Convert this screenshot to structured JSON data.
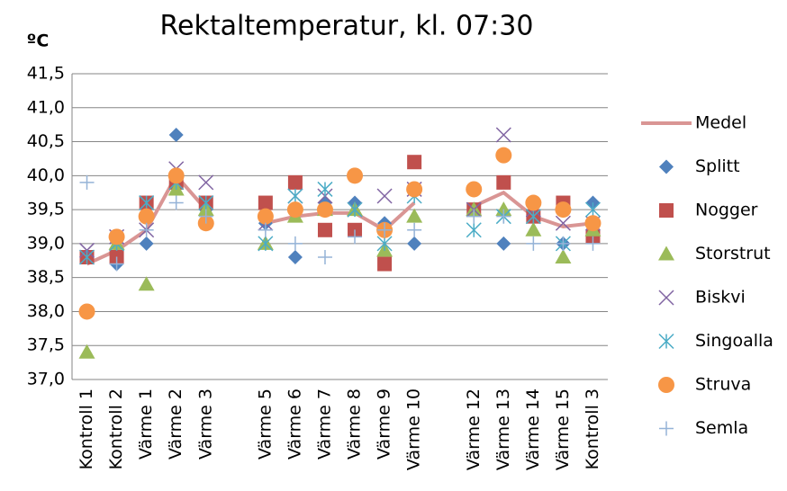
{
  "chart_data": {
    "type": "scatter",
    "title": "Rektaltemperatur, kl. 07:30",
    "y_label": "ºC",
    "categories": [
      "Kontroll 1",
      "Kontroll 2",
      "Värme 1",
      "Värme 2",
      "Värme 3",
      null,
      "Värme 5",
      "Värme 6",
      "Värme 7",
      "Värme 8",
      "Värme 9",
      "Värme 10",
      null,
      "Värme 12",
      "Värme 13",
      "Värme 14",
      "Värme 15",
      "Kontroll 3"
    ],
    "ylim": [
      37.0,
      41.5
    ],
    "yticks": [
      {
        "value": 37.0,
        "label": "37,0"
      },
      {
        "value": 37.5,
        "label": "37,5"
      },
      {
        "value": 38.0,
        "label": "38,0"
      },
      {
        "value": 38.5,
        "label": "38,5"
      },
      {
        "value": 39.0,
        "label": "39,0"
      },
      {
        "value": 39.5,
        "label": "39,5"
      },
      {
        "value": 40.0,
        "label": "40,0"
      },
      {
        "value": 40.5,
        "label": "40,5"
      },
      {
        "value": 41.0,
        "label": "41,0"
      },
      {
        "value": 41.5,
        "label": "41,5"
      }
    ],
    "grid": true,
    "legend": "right",
    "series": [
      {
        "name": "Medel",
        "color": "#d99594",
        "marker": "line",
        "values": [
          38.7,
          38.9,
          39.2,
          40.0,
          39.5,
          null,
          39.3,
          39.4,
          39.45,
          39.45,
          39.2,
          39.6,
          null,
          39.55,
          39.75,
          39.4,
          39.25,
          39.3
        ]
      },
      {
        "name": "Splitt",
        "color": "#4f81bd",
        "marker": "diamond",
        "values": [
          38.8,
          38.7,
          39.0,
          40.6,
          39.5,
          null,
          39.3,
          38.8,
          39.6,
          39.6,
          39.3,
          39.0,
          null,
          39.5,
          39.0,
          39.4,
          39.0,
          39.6
        ]
      },
      {
        "name": "Nogger",
        "color": "#c0504d",
        "marker": "square",
        "values": [
          38.8,
          38.8,
          39.6,
          39.9,
          39.6,
          null,
          39.6,
          39.9,
          39.2,
          39.2,
          38.7,
          40.2,
          null,
          39.5,
          39.9,
          39.4,
          39.6,
          39.1
        ]
      },
      {
        "name": "Storstrut",
        "color": "#9bbb59",
        "marker": "triangle",
        "values": [
          37.4,
          39.0,
          38.4,
          39.8,
          39.5,
          null,
          39.0,
          39.4,
          39.5,
          39.5,
          38.9,
          39.4,
          null,
          39.5,
          39.5,
          39.2,
          38.8,
          39.2
        ]
      },
      {
        "name": "Biskvi",
        "color": "#8064a2",
        "marker": "x",
        "values": [
          38.9,
          39.1,
          39.2,
          40.1,
          39.9,
          null,
          39.3,
          39.7,
          39.7,
          39.5,
          39.7,
          39.8,
          null,
          39.5,
          40.6,
          39.5,
          39.3,
          39.3
        ]
      },
      {
        "name": "Singoalla",
        "color": "#4bacc6",
        "marker": "star",
        "values": [
          38.8,
          39.0,
          39.6,
          39.9,
          39.6,
          null,
          39.0,
          39.7,
          39.8,
          39.5,
          39.0,
          39.7,
          null,
          39.2,
          39.4,
          39.4,
          39.0,
          39.5
        ]
      },
      {
        "name": "Struva",
        "color": "#f79646",
        "marker": "circle",
        "values": [
          38.0,
          39.1,
          39.4,
          40.0,
          39.3,
          null,
          39.4,
          39.5,
          39.5,
          40.0,
          39.2,
          39.8,
          null,
          39.8,
          40.3,
          39.6,
          39.5,
          39.3
        ]
      },
      {
        "name": "Semla",
        "color": "#95b3d7",
        "marker": "plus",
        "values": [
          39.9,
          38.7,
          39.2,
          39.6,
          39.4,
          null,
          39.2,
          39.0,
          38.8,
          39.1,
          39.2,
          39.2,
          null,
          39.4,
          39.4,
          39.0,
          39.0,
          39.0
        ]
      }
    ]
  }
}
